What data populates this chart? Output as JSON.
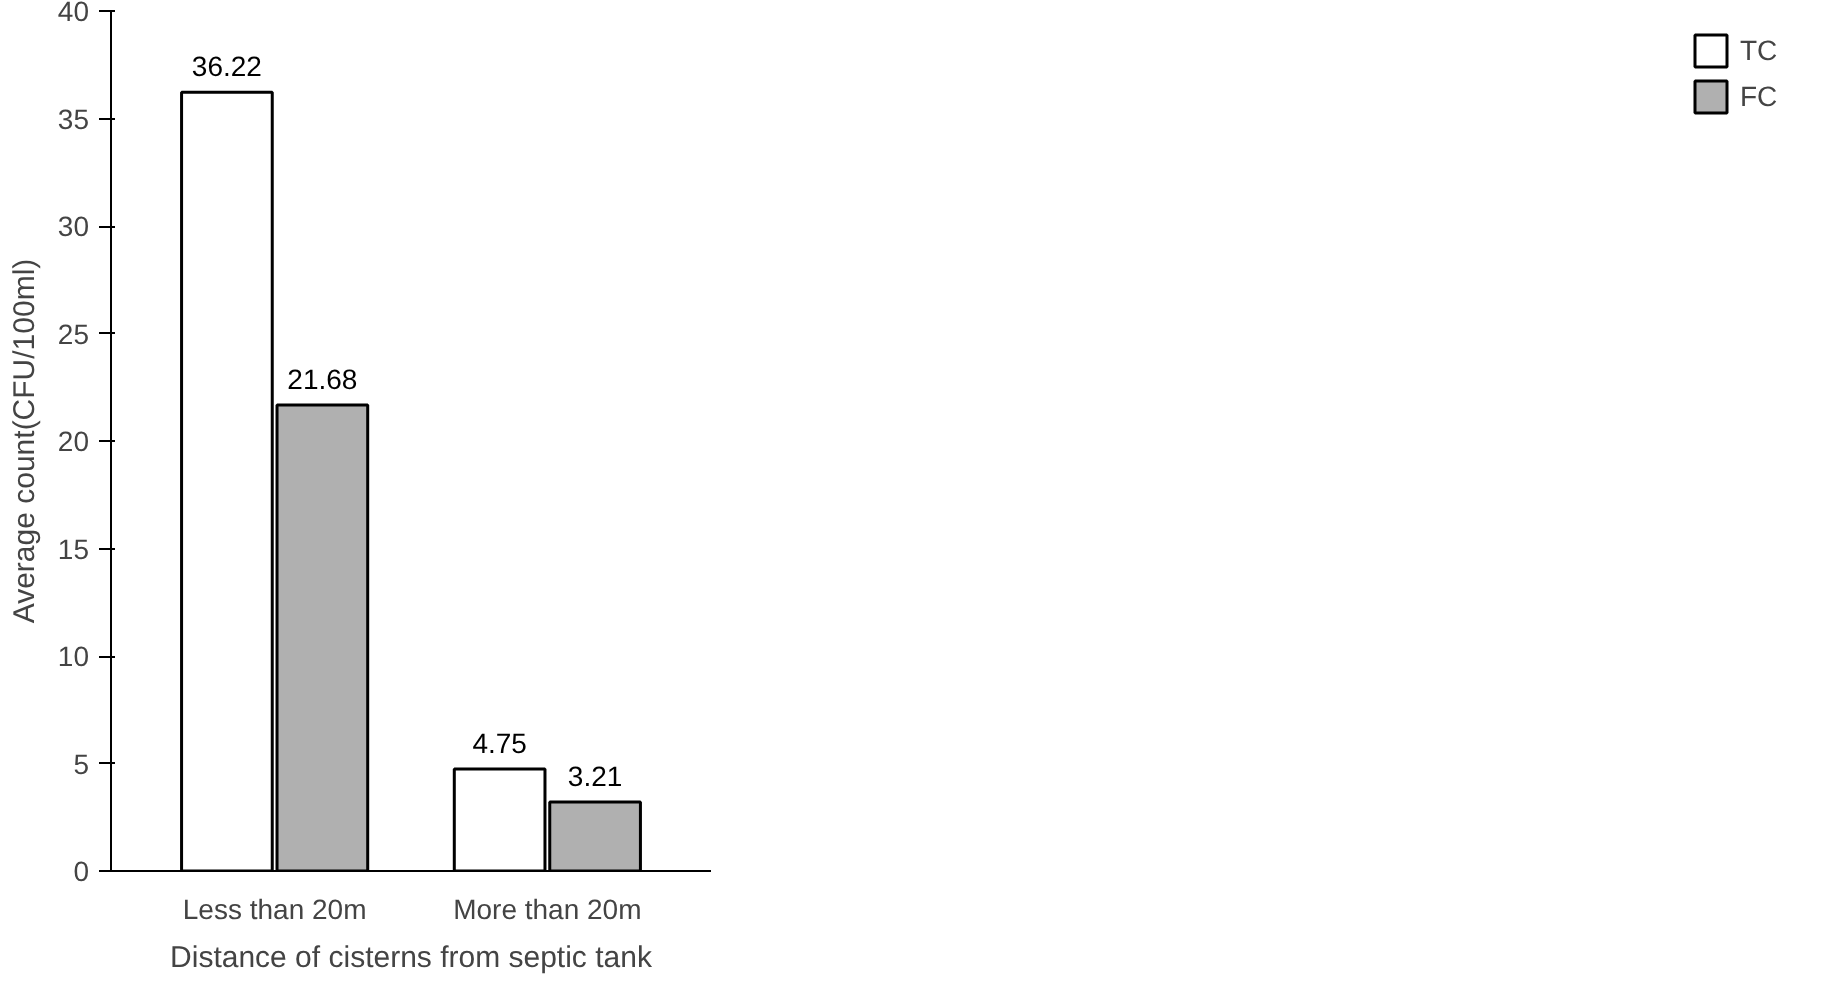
{
  "chart_data": {
    "type": "bar",
    "xlabel": "Distance of cisterns from septic tank",
    "ylabel": "Average count(CFU/100ml)",
    "categories": [
      "Less than 20m",
      "More than 20m"
    ],
    "series": [
      {
        "name": "TC",
        "color": "#ffffff",
        "values": [
          36.22,
          4.75
        ]
      },
      {
        "name": "FC",
        "color": "#b0b0b0",
        "values": [
          21.68,
          3.21
        ]
      }
    ],
    "ylim": [
      0,
      40
    ],
    "yticks": [
      0,
      5,
      10,
      15,
      20,
      25,
      30,
      35,
      40
    ],
    "grid": false,
    "legend": "right",
    "data_labels": true
  }
}
